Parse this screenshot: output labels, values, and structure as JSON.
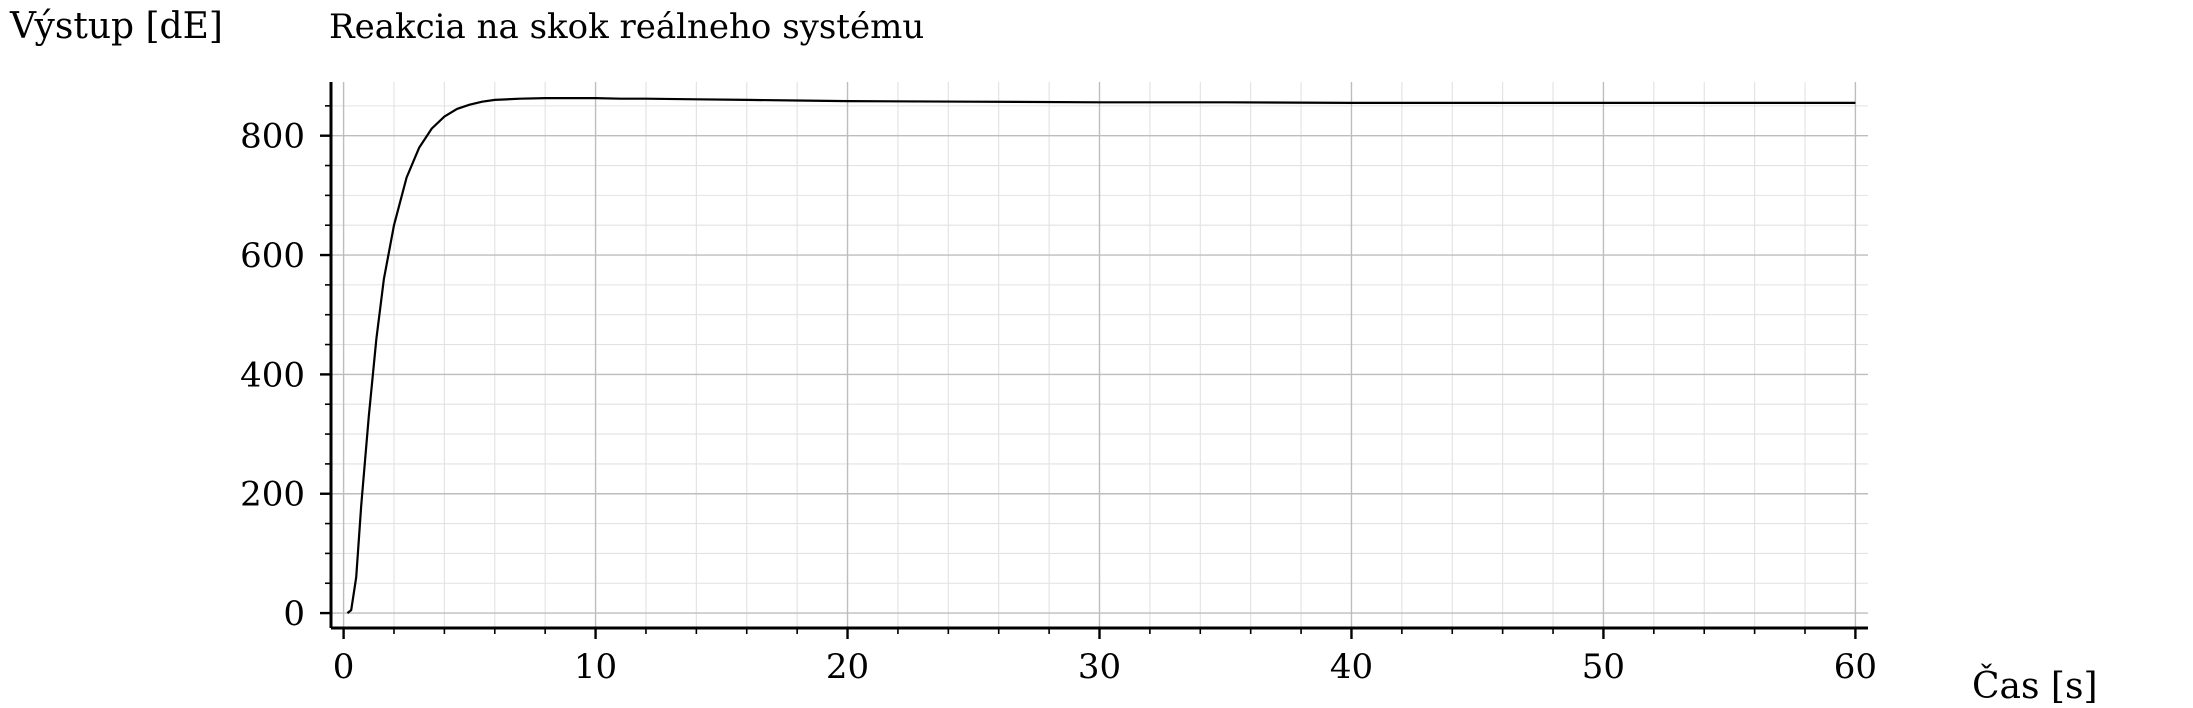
{
  "chart_data": {
    "type": "line",
    "title": "Reakcia na skok reálneho systému",
    "xlabel": "Čas [s]",
    "ylabel": "Výstup [dE]",
    "xlim": [
      -0.5,
      60.5
    ],
    "ylim": [
      -25,
      890
    ],
    "x_ticks": [
      0,
      10,
      20,
      30,
      40,
      50,
      60
    ],
    "x_tick_labels": [
      "0",
      "10",
      "20",
      "30",
      "40",
      "50",
      "60"
    ],
    "y_ticks": [
      0,
      200,
      400,
      600,
      800
    ],
    "y_tick_labels": [
      "0",
      "200",
      "400",
      "600",
      "800"
    ],
    "grid": true,
    "line_color": "#000000",
    "series": [
      {
        "x": [
          0.15,
          0.3,
          0.5,
          0.7,
          1,
          1.3,
          1.6,
          2,
          2.5,
          3,
          3.5,
          4,
          4.5,
          5,
          5.5,
          6,
          7,
          8,
          9,
          10,
          11,
          12,
          14,
          16,
          18,
          20,
          25,
          30,
          35,
          40,
          45,
          50,
          55,
          60
        ],
        "values": [
          0,
          5,
          60,
          180,
          330,
          460,
          560,
          650,
          730,
          780,
          812,
          832,
          845,
          852,
          857,
          860,
          862,
          863,
          863,
          863,
          862,
          862,
          861,
          860,
          859,
          858,
          857,
          856,
          856,
          855,
          855,
          855,
          855,
          855
        ]
      }
    ]
  }
}
